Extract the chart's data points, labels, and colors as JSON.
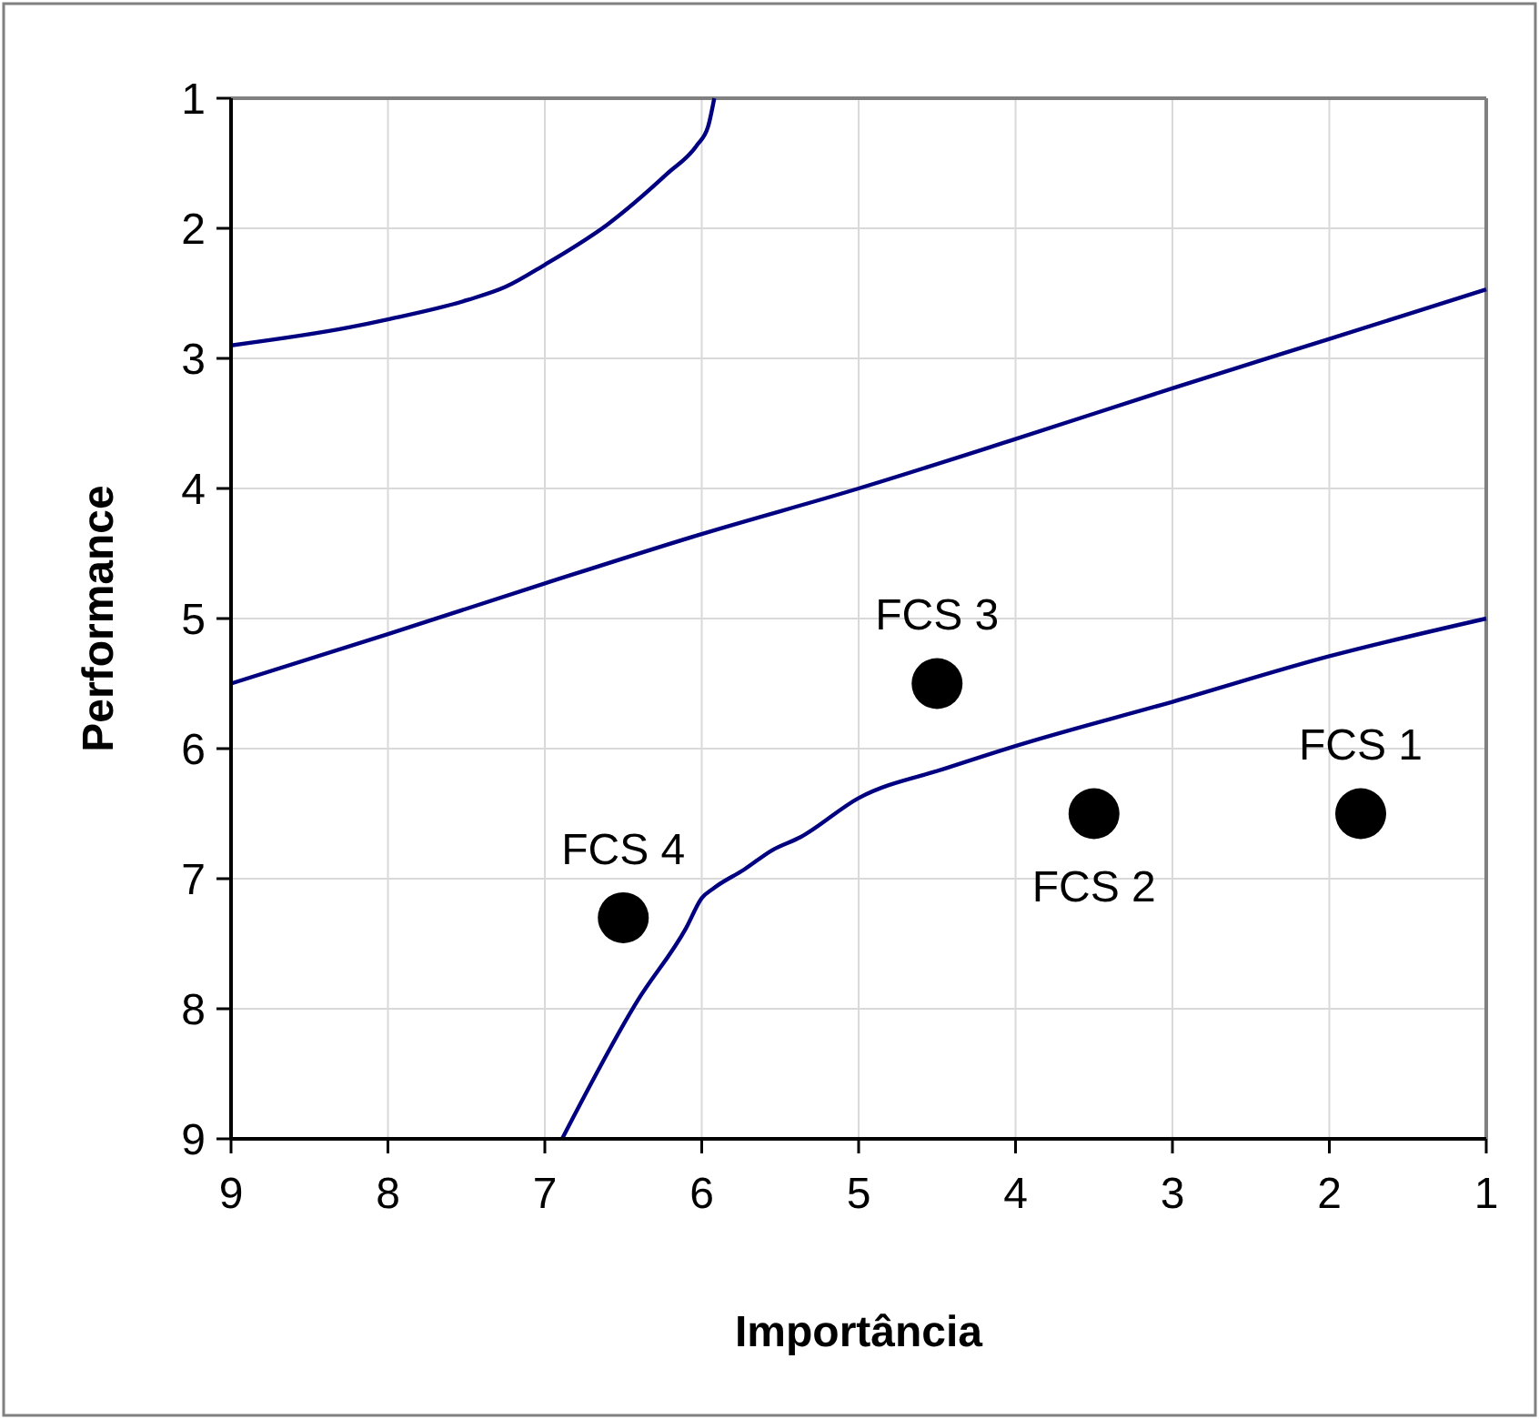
{
  "chart_data": {
    "type": "scatter",
    "xlabel": "Importância",
    "ylabel": "Performance",
    "xlim": [
      9,
      1
    ],
    "ylim": [
      9,
      1
    ],
    "xticks": [
      9,
      8,
      7,
      6,
      5,
      4,
      3,
      2,
      1
    ],
    "yticks": [
      9,
      8,
      7,
      6,
      5,
      4,
      3,
      2,
      1
    ],
    "grid": true,
    "series": [
      {
        "type": "line",
        "color": "#000080",
        "marker": "none",
        "line_style": "solid",
        "x": [
          9,
          8.24,
          8,
          7.49,
          7.25,
          7,
          6.6,
          6.22,
          6.03,
          5.96,
          5.92
        ],
        "values": [
          2.9,
          2.76,
          2.7,
          2.55,
          2.45,
          2.28,
          1.97,
          1.58,
          1.36,
          1.22,
          1
        ]
      },
      {
        "type": "line",
        "color": "#000080",
        "marker": "none",
        "line_style": "solid",
        "x": [
          9,
          8,
          7,
          6,
          5,
          4,
          3,
          2,
          1
        ],
        "values": [
          5.5,
          5.12,
          4.73,
          4.35,
          4,
          3.62,
          3.23,
          2.85,
          2.47
        ]
      },
      {
        "type": "line",
        "color": "#000080",
        "marker": "none",
        "line_style": "solid",
        "x": [
          6.89,
          6.41,
          6.1,
          6,
          5.92,
          5.73,
          5.55,
          5.37,
          5,
          4.44,
          4,
          3,
          2,
          1
        ],
        "values": [
          9,
          7.94,
          7.38,
          7.15,
          7.07,
          6.93,
          6.78,
          6.68,
          6.38,
          6.15,
          5.98,
          5.64,
          5.29,
          5
        ]
      },
      {
        "color": "#000000",
        "marker": "circle",
        "x": [
          1.8,
          3.5,
          4.5,
          6.5
        ],
        "values": [
          6.5,
          6.5,
          5.5,
          7.3
        ]
      }
    ],
    "annotations": [
      {
        "text": "FCS 1",
        "x": 1.8,
        "y": 6.5
      },
      {
        "text": "FCS 2",
        "x": 3.5,
        "y": 6.5
      },
      {
        "text": "FCS 3",
        "x": 4.5,
        "y": 5.5
      },
      {
        "text": "FCS 4",
        "x": 6.5,
        "y": 7.3
      }
    ]
  }
}
